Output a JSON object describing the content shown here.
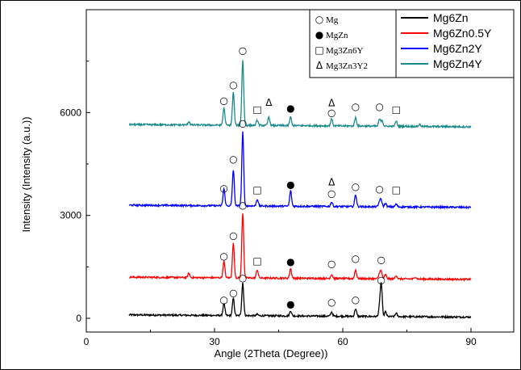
{
  "chart_data": {
    "type": "line",
    "xlabel": "Angle (2Theta (Degree))",
    "ylabel": "Intensity (Intensity (a.u.))",
    "xlim": [
      0,
      100
    ],
    "ylim": [
      -400,
      9000
    ],
    "xticks": [
      0,
      30,
      60,
      90
    ],
    "yticks": [
      0,
      3000,
      6000
    ],
    "grid": false,
    "legend_position": "top-right",
    "series": [
      {
        "name": "Mg6Zn",
        "color": "#000000",
        "baseline": 100,
        "peaks": [
          [
            32.2,
            350
          ],
          [
            34.4,
            500
          ],
          [
            36.6,
            960
          ],
          [
            40.0,
            40
          ],
          [
            47.8,
            150
          ],
          [
            57.4,
            120
          ],
          [
            63.0,
            220
          ],
          [
            68.6,
            250
          ],
          [
            69.0,
            950
          ],
          [
            70.0,
            140
          ],
          [
            72.5,
            100
          ]
        ]
      },
      {
        "name": "Mg6Zn0.5Y",
        "color": "#ff0000",
        "baseline": 1200,
        "peaks": [
          [
            24.0,
            120
          ],
          [
            32.2,
            480
          ],
          [
            34.4,
            1000
          ],
          [
            36.6,
            1900
          ],
          [
            40.0,
            240
          ],
          [
            47.8,
            280
          ],
          [
            57.4,
            120
          ],
          [
            63.0,
            250
          ],
          [
            68.6,
            150
          ],
          [
            69.0,
            200
          ],
          [
            70.0,
            120
          ],
          [
            72.5,
            100
          ],
          [
            77.0,
            60
          ]
        ]
      },
      {
        "name": "Mg6Zn2Y",
        "color": "#0000ff",
        "baseline": 3300,
        "peaks": [
          [
            32.2,
            500
          ],
          [
            34.4,
            1050
          ],
          [
            36.6,
            2150
          ],
          [
            40.0,
            200
          ],
          [
            47.8,
            450
          ],
          [
            57.4,
            130
          ],
          [
            63.0,
            350
          ],
          [
            68.6,
            150
          ],
          [
            69.0,
            180
          ],
          [
            70.0,
            100
          ],
          [
            72.5,
            80
          ]
        ]
      },
      {
        "name": "Mg6Zn4Y",
        "color": "#1a8a8a",
        "baseline": 5650,
        "peaks": [
          [
            24.0,
            100
          ],
          [
            32.2,
            500
          ],
          [
            34.4,
            950
          ],
          [
            36.6,
            1900
          ],
          [
            40.0,
            150
          ],
          [
            42.7,
            250
          ],
          [
            47.8,
            250
          ],
          [
            57.4,
            200
          ],
          [
            63.0,
            250
          ],
          [
            68.6,
            200
          ],
          [
            69.2,
            180
          ],
          [
            72.5,
            150
          ],
          [
            78.0,
            60
          ]
        ]
      }
    ],
    "phase_legend": [
      {
        "symbol": "○",
        "label": "Mg"
      },
      {
        "symbol": "●",
        "label": "MgZn"
      },
      {
        "symbol": "□",
        "label": "Mg3Zn6Y"
      },
      {
        "symbol": "Δ",
        "label": "Mg3Zn3Y2"
      }
    ],
    "annotations": [
      {
        "x": 32.2,
        "y": 450,
        "symbol": "○"
      },
      {
        "x": 34.4,
        "y": 650,
        "symbol": "○"
      },
      {
        "x": 36.6,
        "y": 1080,
        "symbol": "○"
      },
      {
        "x": 47.8,
        "y": 320,
        "symbol": "●"
      },
      {
        "x": 57.4,
        "y": 380,
        "symbol": "○"
      },
      {
        "x": 63.0,
        "y": 450,
        "symbol": "○"
      },
      {
        "x": 69.0,
        "y": 1020,
        "symbol": "○"
      },
      {
        "x": 32.2,
        "y": 1720,
        "symbol": "○"
      },
      {
        "x": 34.4,
        "y": 2320,
        "symbol": "○"
      },
      {
        "x": 36.6,
        "y": 3200,
        "symbol": "○"
      },
      {
        "x": 40.0,
        "y": 1580,
        "symbol": "□"
      },
      {
        "x": 47.8,
        "y": 1560,
        "symbol": "●"
      },
      {
        "x": 57.4,
        "y": 1500,
        "symbol": "○"
      },
      {
        "x": 63.0,
        "y": 1650,
        "symbol": "○"
      },
      {
        "x": 69.0,
        "y": 1620,
        "symbol": "○"
      },
      {
        "x": 32.2,
        "y": 3700,
        "symbol": "○"
      },
      {
        "x": 34.4,
        "y": 4550,
        "symbol": "○"
      },
      {
        "x": 36.6,
        "y": 5600,
        "symbol": "○"
      },
      {
        "x": 40.0,
        "y": 3650,
        "symbol": "□"
      },
      {
        "x": 47.8,
        "y": 3800,
        "symbol": "●"
      },
      {
        "x": 57.4,
        "y": 3880,
        "symbol": "Δ"
      },
      {
        "x": 57.4,
        "y": 3550,
        "symbol": "○"
      },
      {
        "x": 63.0,
        "y": 3750,
        "symbol": "○"
      },
      {
        "x": 68.6,
        "y": 3680,
        "symbol": "○"
      },
      {
        "x": 72.5,
        "y": 3650,
        "symbol": "□"
      },
      {
        "x": 32.2,
        "y": 6250,
        "symbol": "○"
      },
      {
        "x": 34.4,
        "y": 6720,
        "symbol": "○"
      },
      {
        "x": 36.6,
        "y": 7720,
        "symbol": "○"
      },
      {
        "x": 40.0,
        "y": 6000,
        "symbol": "□"
      },
      {
        "x": 42.7,
        "y": 6200,
        "symbol": "Δ"
      },
      {
        "x": 47.8,
        "y": 6030,
        "symbol": "●"
      },
      {
        "x": 57.4,
        "y": 6180,
        "symbol": "Δ"
      },
      {
        "x": 57.4,
        "y": 5900,
        "symbol": "○"
      },
      {
        "x": 63.0,
        "y": 6080,
        "symbol": "○"
      },
      {
        "x": 68.6,
        "y": 6080,
        "symbol": "○"
      },
      {
        "x": 72.5,
        "y": 6000,
        "symbol": "□"
      }
    ]
  }
}
